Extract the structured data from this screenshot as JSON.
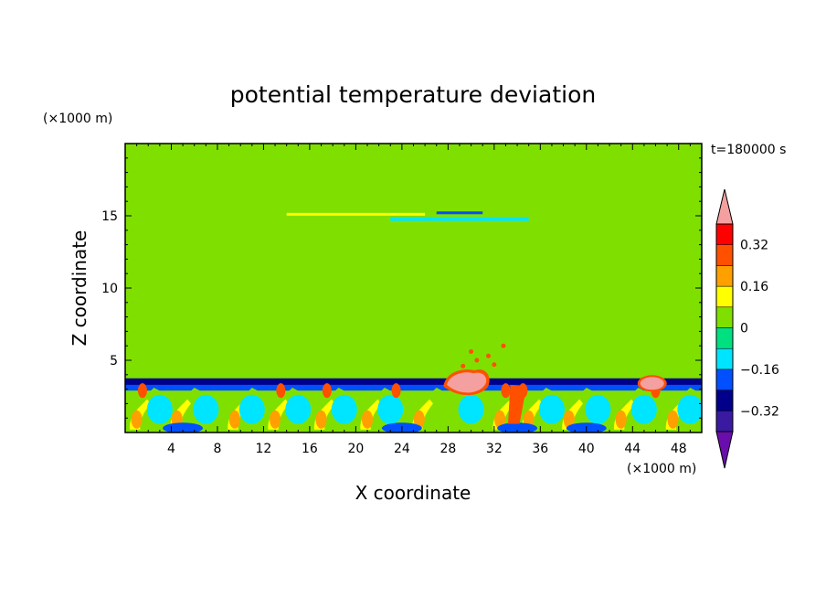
{
  "chart_data": {
    "type": "heatmap",
    "title": "potential temperature deviation",
    "xlabel": "X coordinate",
    "ylabel": "Z coordinate",
    "x_unit": "(×1000 m)",
    "y_unit": "(×1000 m)",
    "time_label": "t=180000 s",
    "xlim": [
      0,
      50
    ],
    "ylim": [
      0,
      20
    ],
    "x_ticks": [
      4,
      8,
      12,
      16,
      20,
      24,
      28,
      32,
      36,
      40,
      44,
      48
    ],
    "y_ticks": [
      5,
      10,
      15
    ],
    "grid": false,
    "colorbar": {
      "position": "right",
      "levels": [
        -0.4,
        -0.32,
        -0.24,
        -0.16,
        -0.08,
        0,
        0.08,
        0.16,
        0.24,
        0.32,
        0.4
      ],
      "labeled_ticks": [
        "0.32",
        "0.16",
        "0",
        "−0.16",
        "−0.32"
      ],
      "labeled_values": [
        0.32,
        0.16,
        0,
        -0.16,
        -0.32
      ],
      "colors": [
        "#6a0dad",
        "#3a1aa0",
        "#00008b",
        "#0050ff",
        "#00e5ff",
        "#00e080",
        "#7fe000",
        "#ffff00",
        "#ffa000",
        "#ff5000",
        "#ff0000",
        "#f4a0a0"
      ]
    },
    "background_value": 0,
    "regions": [
      {
        "field": "upper-domain",
        "x": [
          0,
          50
        ],
        "z": [
          3.8,
          20
        ],
        "value": 0.04
      },
      {
        "field": "upper-layer-band",
        "x": [
          0,
          50
        ],
        "z": [
          14.6,
          15.3
        ],
        "value": 0.02
      },
      {
        "field": "mid-warm-tongue-left",
        "x": [
          2,
          16
        ],
        "z": [
          4,
          11
        ],
        "value": 0.04
      },
      {
        "field": "mid-warm-tongue-right",
        "x": [
          40,
          50
        ],
        "z": [
          4,
          12
        ],
        "value": 0.04
      },
      {
        "field": "inversion-cold-strip",
        "x": [
          0,
          50
        ],
        "z": [
          3.2,
          3.8
        ],
        "value": -0.3
      },
      {
        "field": "boundary-layer",
        "x": [
          0,
          50
        ],
        "z": [
          0,
          3.2
        ],
        "value": 0.0
      },
      {
        "field": "warm-anomaly-28-32",
        "x": [
          27.5,
          32
        ],
        "z": [
          2.3,
          4.4
        ],
        "value": 0.4
      },
      {
        "field": "warm-anomaly-45",
        "x": [
          44.5,
          47
        ],
        "z": [
          2.8,
          4.0
        ],
        "value": 0.4
      }
    ]
  }
}
